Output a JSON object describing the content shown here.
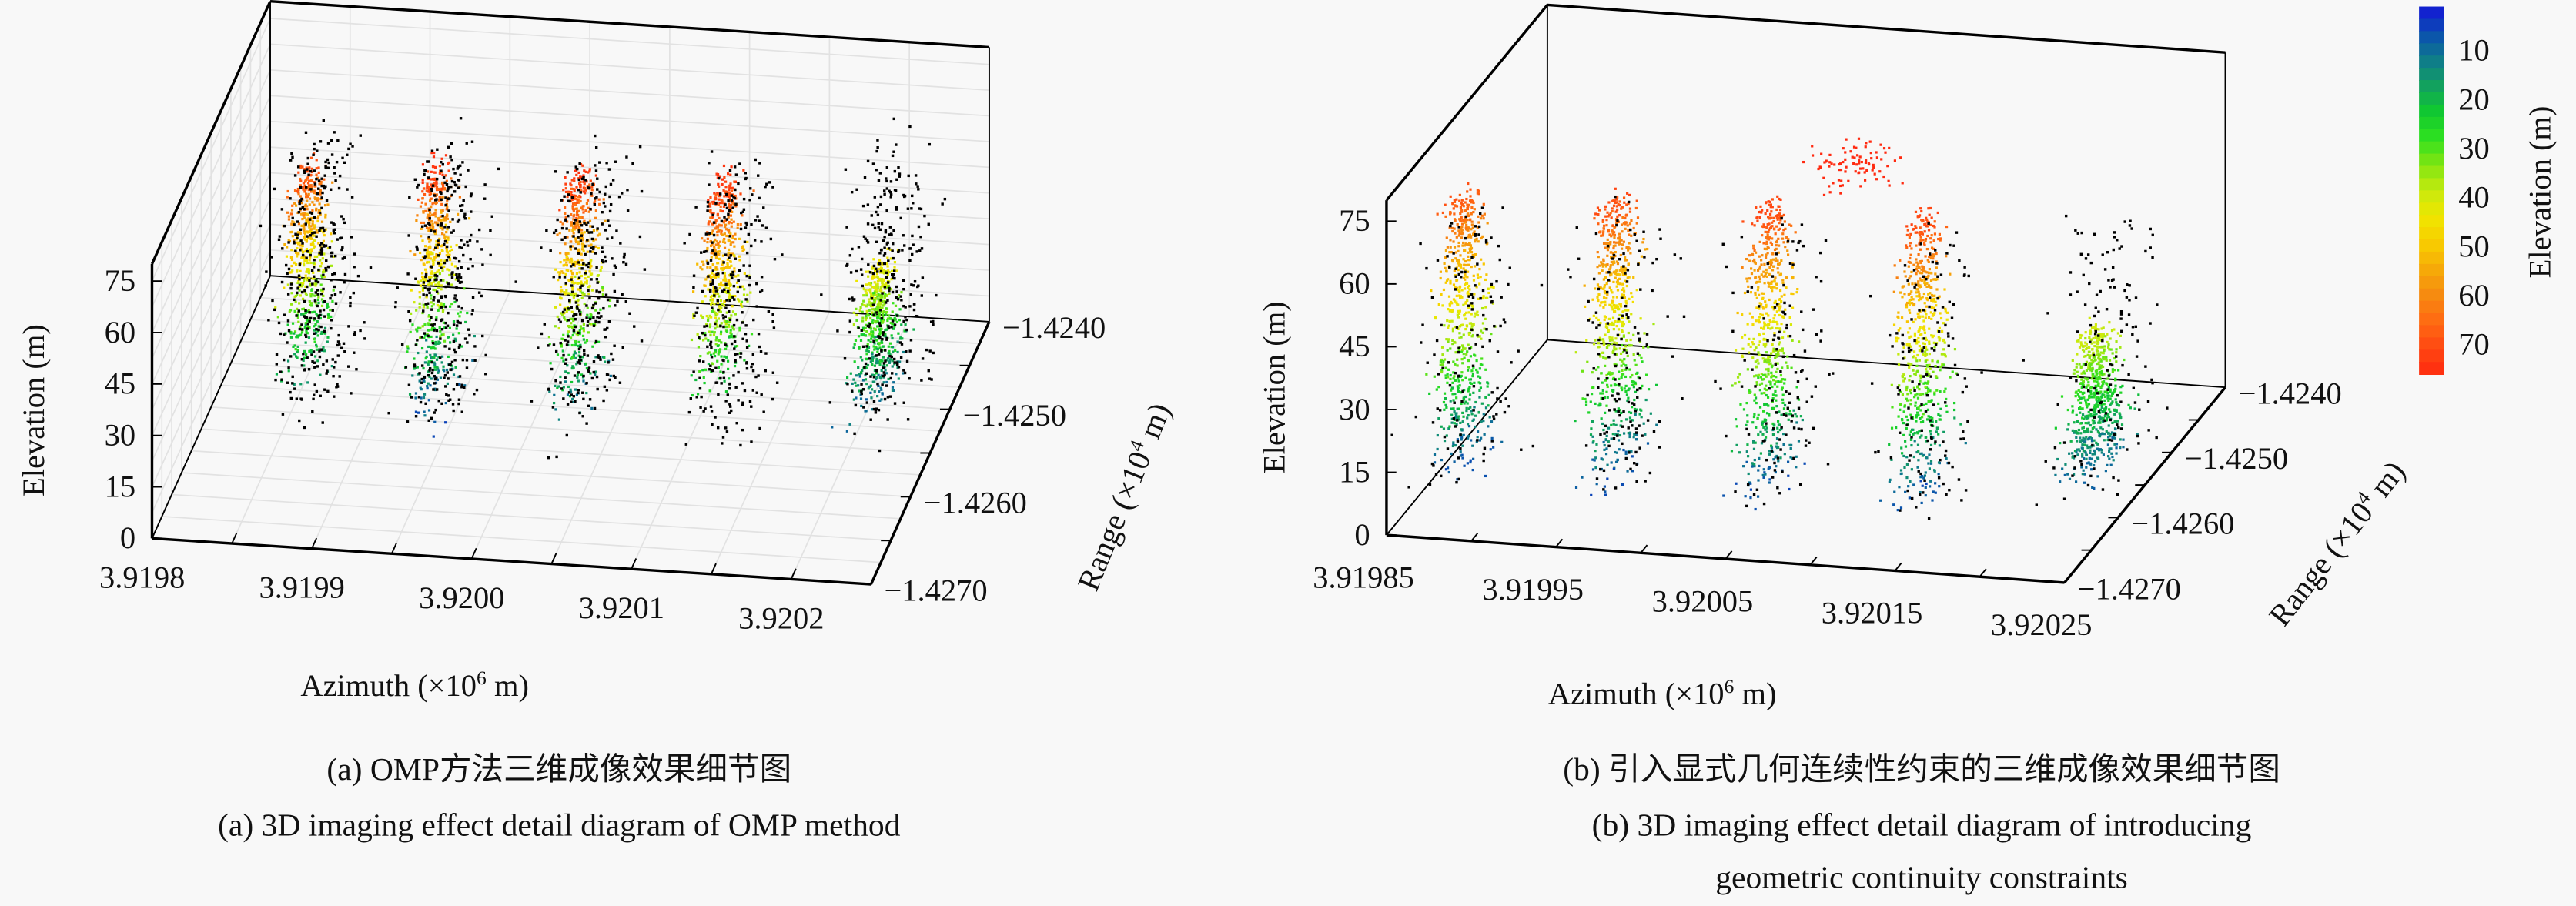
{
  "colormap": [
    "#1414d8",
    "#0a4fb0",
    "#0f7a8c",
    "#12a060",
    "#10c830",
    "#2ee020",
    "#7ee512",
    "#c6ea0e",
    "#f0e600",
    "#f8cc00",
    "#f6aa08",
    "#f68a10",
    "#ff6a12",
    "#ff4812",
    "#ff2a10"
  ],
  "chart_data": [
    {
      "type": "scatter3d",
      "panel": "a",
      "xlabel": "Azimuth (×10",
      "xlabel_exp": "6",
      "xlabel_unit": " m)",
      "ylabel": "Range (×10",
      "ylabel_exp": "4",
      "ylabel_unit": " m)",
      "zlabel": "Elevation (m)",
      "xlim": [
        3.9198,
        3.92025
      ],
      "ylim": [
        -1.427,
        -1.424
      ],
      "zlim": [
        0,
        80
      ],
      "x_ticks": [
        "3.9198",
        "3.9199",
        "3.9200",
        "3.9201",
        "3.9202"
      ],
      "y_ticks": [
        "−1.4240",
        "−1.4250",
        "−1.4260",
        "−1.4270"
      ],
      "z_ticks": [
        "75",
        "60",
        "45",
        "30",
        "15",
        "0"
      ],
      "grid": true,
      "color_by": "elevation",
      "noise_points": "black",
      "clusters": [
        {
          "azimuth": 3.91986,
          "range": -1.4255,
          "elev_min": 15,
          "elev_max": 70
        },
        {
          "azimuth": 3.91994,
          "range": -1.4255,
          "elev_min": 5,
          "elev_max": 75
        },
        {
          "azimuth": 3.92003,
          "range": -1.4255,
          "elev_min": 10,
          "elev_max": 75
        },
        {
          "azimuth": 3.92012,
          "range": -1.4255,
          "elev_min": 20,
          "elev_max": 75
        },
        {
          "azimuth": 3.92021,
          "range": -1.4252,
          "elev_min": 8,
          "elev_max": 45
        }
      ],
      "caption_cn": "(a) OMP方法三维成像效果细节图",
      "caption_en": "(a) 3D imaging effect detail diagram of OMP method"
    },
    {
      "type": "scatter3d",
      "panel": "b",
      "xlabel": "Azimuth (×10",
      "xlabel_exp": "6",
      "xlabel_unit": " m)",
      "ylabel": "Range (×10",
      "ylabel_exp": "4",
      "ylabel_unit": " m)",
      "zlabel": "Elevation (m)",
      "xlim": [
        3.91985,
        3.92025
      ],
      "ylim": [
        -1.427,
        -1.424
      ],
      "zlim": [
        0,
        80
      ],
      "x_ticks": [
        "3.91985",
        "3.91995",
        "3.92005",
        "3.92015",
        "3.92025"
      ],
      "y_ticks": [
        "−1.4240",
        "−1.4250",
        "−1.4260",
        "−1.4270"
      ],
      "z_ticks": [
        "75",
        "60",
        "45",
        "30",
        "15",
        "0"
      ],
      "grid": false,
      "color_by": "elevation",
      "noise_points": "black",
      "clusters": [
        {
          "azimuth": 3.91987,
          "range": -1.4262,
          "elev_min": 5,
          "elev_max": 70
        },
        {
          "azimuth": 3.91996,
          "range": -1.4262,
          "elev_min": 5,
          "elev_max": 72
        },
        {
          "azimuth": 3.92005,
          "range": -1.4262,
          "elev_min": 5,
          "elev_max": 72
        },
        {
          "azimuth": 3.92014,
          "range": -1.4262,
          "elev_min": 5,
          "elev_max": 72
        },
        {
          "azimuth": 3.92023,
          "range": -1.4258,
          "elev_min": 8,
          "elev_max": 40
        },
        {
          "azimuth": 3.9201,
          "range": -1.4262,
          "elev_min": 78,
          "elev_max": 88
        }
      ],
      "caption_cn": "(b) 引入显式几何连续性约束的三维成像效果细节图",
      "caption_en_1": "(b) 3D imaging effect detail diagram of introducing",
      "caption_en_2": "geometric continuity constraints"
    }
  ],
  "colorbar": {
    "label": "Elevation (m)",
    "range": [
      1,
      76
    ],
    "ticks": [
      "10",
      "20",
      "30",
      "40",
      "50",
      "60",
      "70"
    ]
  }
}
